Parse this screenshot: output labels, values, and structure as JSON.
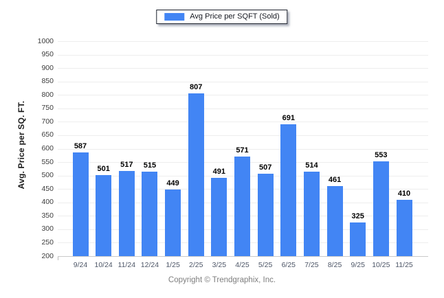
{
  "legend": {
    "label": "Avg Price per SQFT (Sold)",
    "swatch_color": "#4285f4"
  },
  "footer": {
    "copyright": "Copyright © Trendgraphix, Inc."
  },
  "chart_data": {
    "type": "bar",
    "title": "Avg Price per SQFT (Sold)",
    "categories": [
      "9/24",
      "10/24",
      "11/24",
      "12/24",
      "1/25",
      "2/25",
      "3/25",
      "4/25",
      "5/25",
      "6/25",
      "7/25",
      "8/25",
      "9/25",
      "10/25",
      "11/25"
    ],
    "values": [
      587,
      501,
      517,
      515,
      449,
      807,
      491,
      571,
      507,
      691,
      514,
      461,
      325,
      553,
      410
    ],
    "xlabel": "",
    "ylabel": "Avg. Price per SQ. FT.",
    "ylim": [
      200,
      1000
    ],
    "ytick_step": 50,
    "bar_color": "#4285f4",
    "grid": true,
    "legend_position": "top-center",
    "value_labels": true
  }
}
